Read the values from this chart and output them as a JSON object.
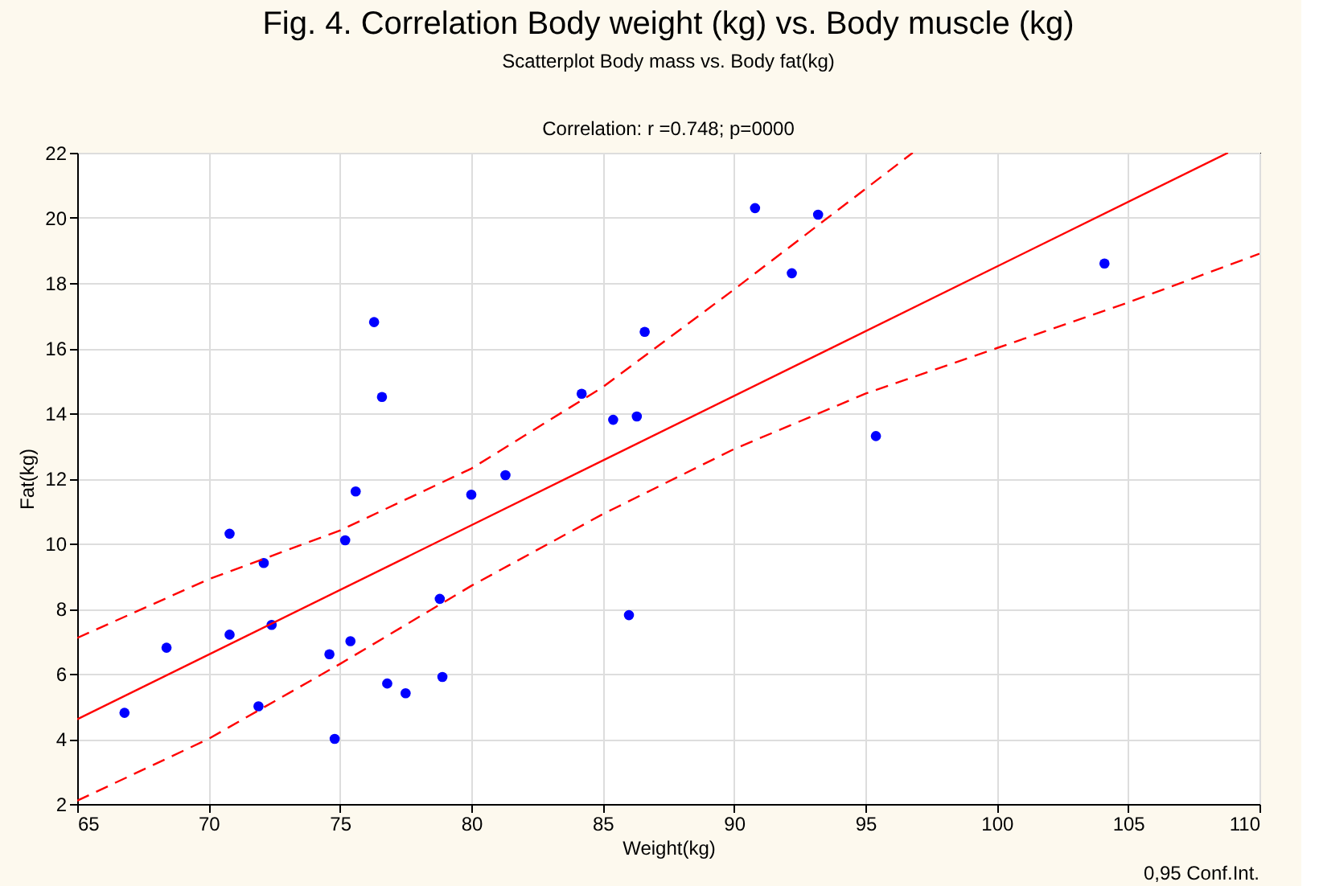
{
  "chart_data": {
    "type": "scatter",
    "title": "Fig. 4. Correlation Body weight (kg) vs. Body muscle (kg)",
    "subtitle": "Scatterplot Body mass vs. Body fat(kg)",
    "xlabel": "Weight(kg)",
    "ylabel": "Fat(kg)",
    "annotations": [
      "Correlation: r =0.748; p=0000",
      "0,95 Conf.Int."
    ],
    "xlim": [
      65,
      110
    ],
    "xticks": [
      65,
      70,
      75,
      80,
      85,
      90,
      95,
      100,
      105,
      110
    ],
    "ylim": [
      2,
      22
    ],
    "yticks": [
      2,
      4,
      6,
      8,
      10,
      12,
      14,
      16,
      18,
      20,
      22
    ],
    "grid": true,
    "series": [
      {
        "color": "#0000ff",
        "marker": "circle",
        "x": [
          66.8,
          68.4,
          70.8,
          70.8,
          71.9,
          72.1,
          72.4,
          74.6,
          74.8,
          75.2,
          75.4,
          75.6,
          76.3,
          76.6,
          76.8,
          77.5,
          78.8,
          78.9,
          80.0,
          81.3,
          84.2,
          85.4,
          86.0,
          86.3,
          86.6,
          90.8,
          92.2,
          93.2,
          95.4,
          104.1
        ],
        "values": [
          4.8,
          6.8,
          10.3,
          7.2,
          5.0,
          9.4,
          7.5,
          6.6,
          4.0,
          10.1,
          7.0,
          11.6,
          16.8,
          14.5,
          5.7,
          5.4,
          8.3,
          5.9,
          11.5,
          12.1,
          14.6,
          13.8,
          7.8,
          13.9,
          16.5,
          20.3,
          18.3,
          20.1,
          13.3,
          18.6
        ]
      },
      {
        "type": "line",
        "color": "#ff0000",
        "line_style": "solid",
        "x": [
          65,
          108.8
        ],
        "values": [
          4.6,
          22
        ]
      },
      {
        "type": "line",
        "color": "#ff0000",
        "line_style": "dashed",
        "x": [
          65,
          70,
          75,
          80,
          85,
          90,
          96.8
        ],
        "values": [
          7.1,
          8.9,
          10.4,
          12.3,
          14.8,
          17.8,
          22
        ]
      },
      {
        "type": "line",
        "color": "#ff0000",
        "line_style": "dashed",
        "x": [
          65,
          70,
          75,
          80,
          85,
          90,
          95,
          100,
          105,
          110
        ],
        "values": [
          2.1,
          4.0,
          6.3,
          8.7,
          10.9,
          12.9,
          14.6,
          16.0,
          17.4,
          18.9
        ]
      }
    ]
  }
}
